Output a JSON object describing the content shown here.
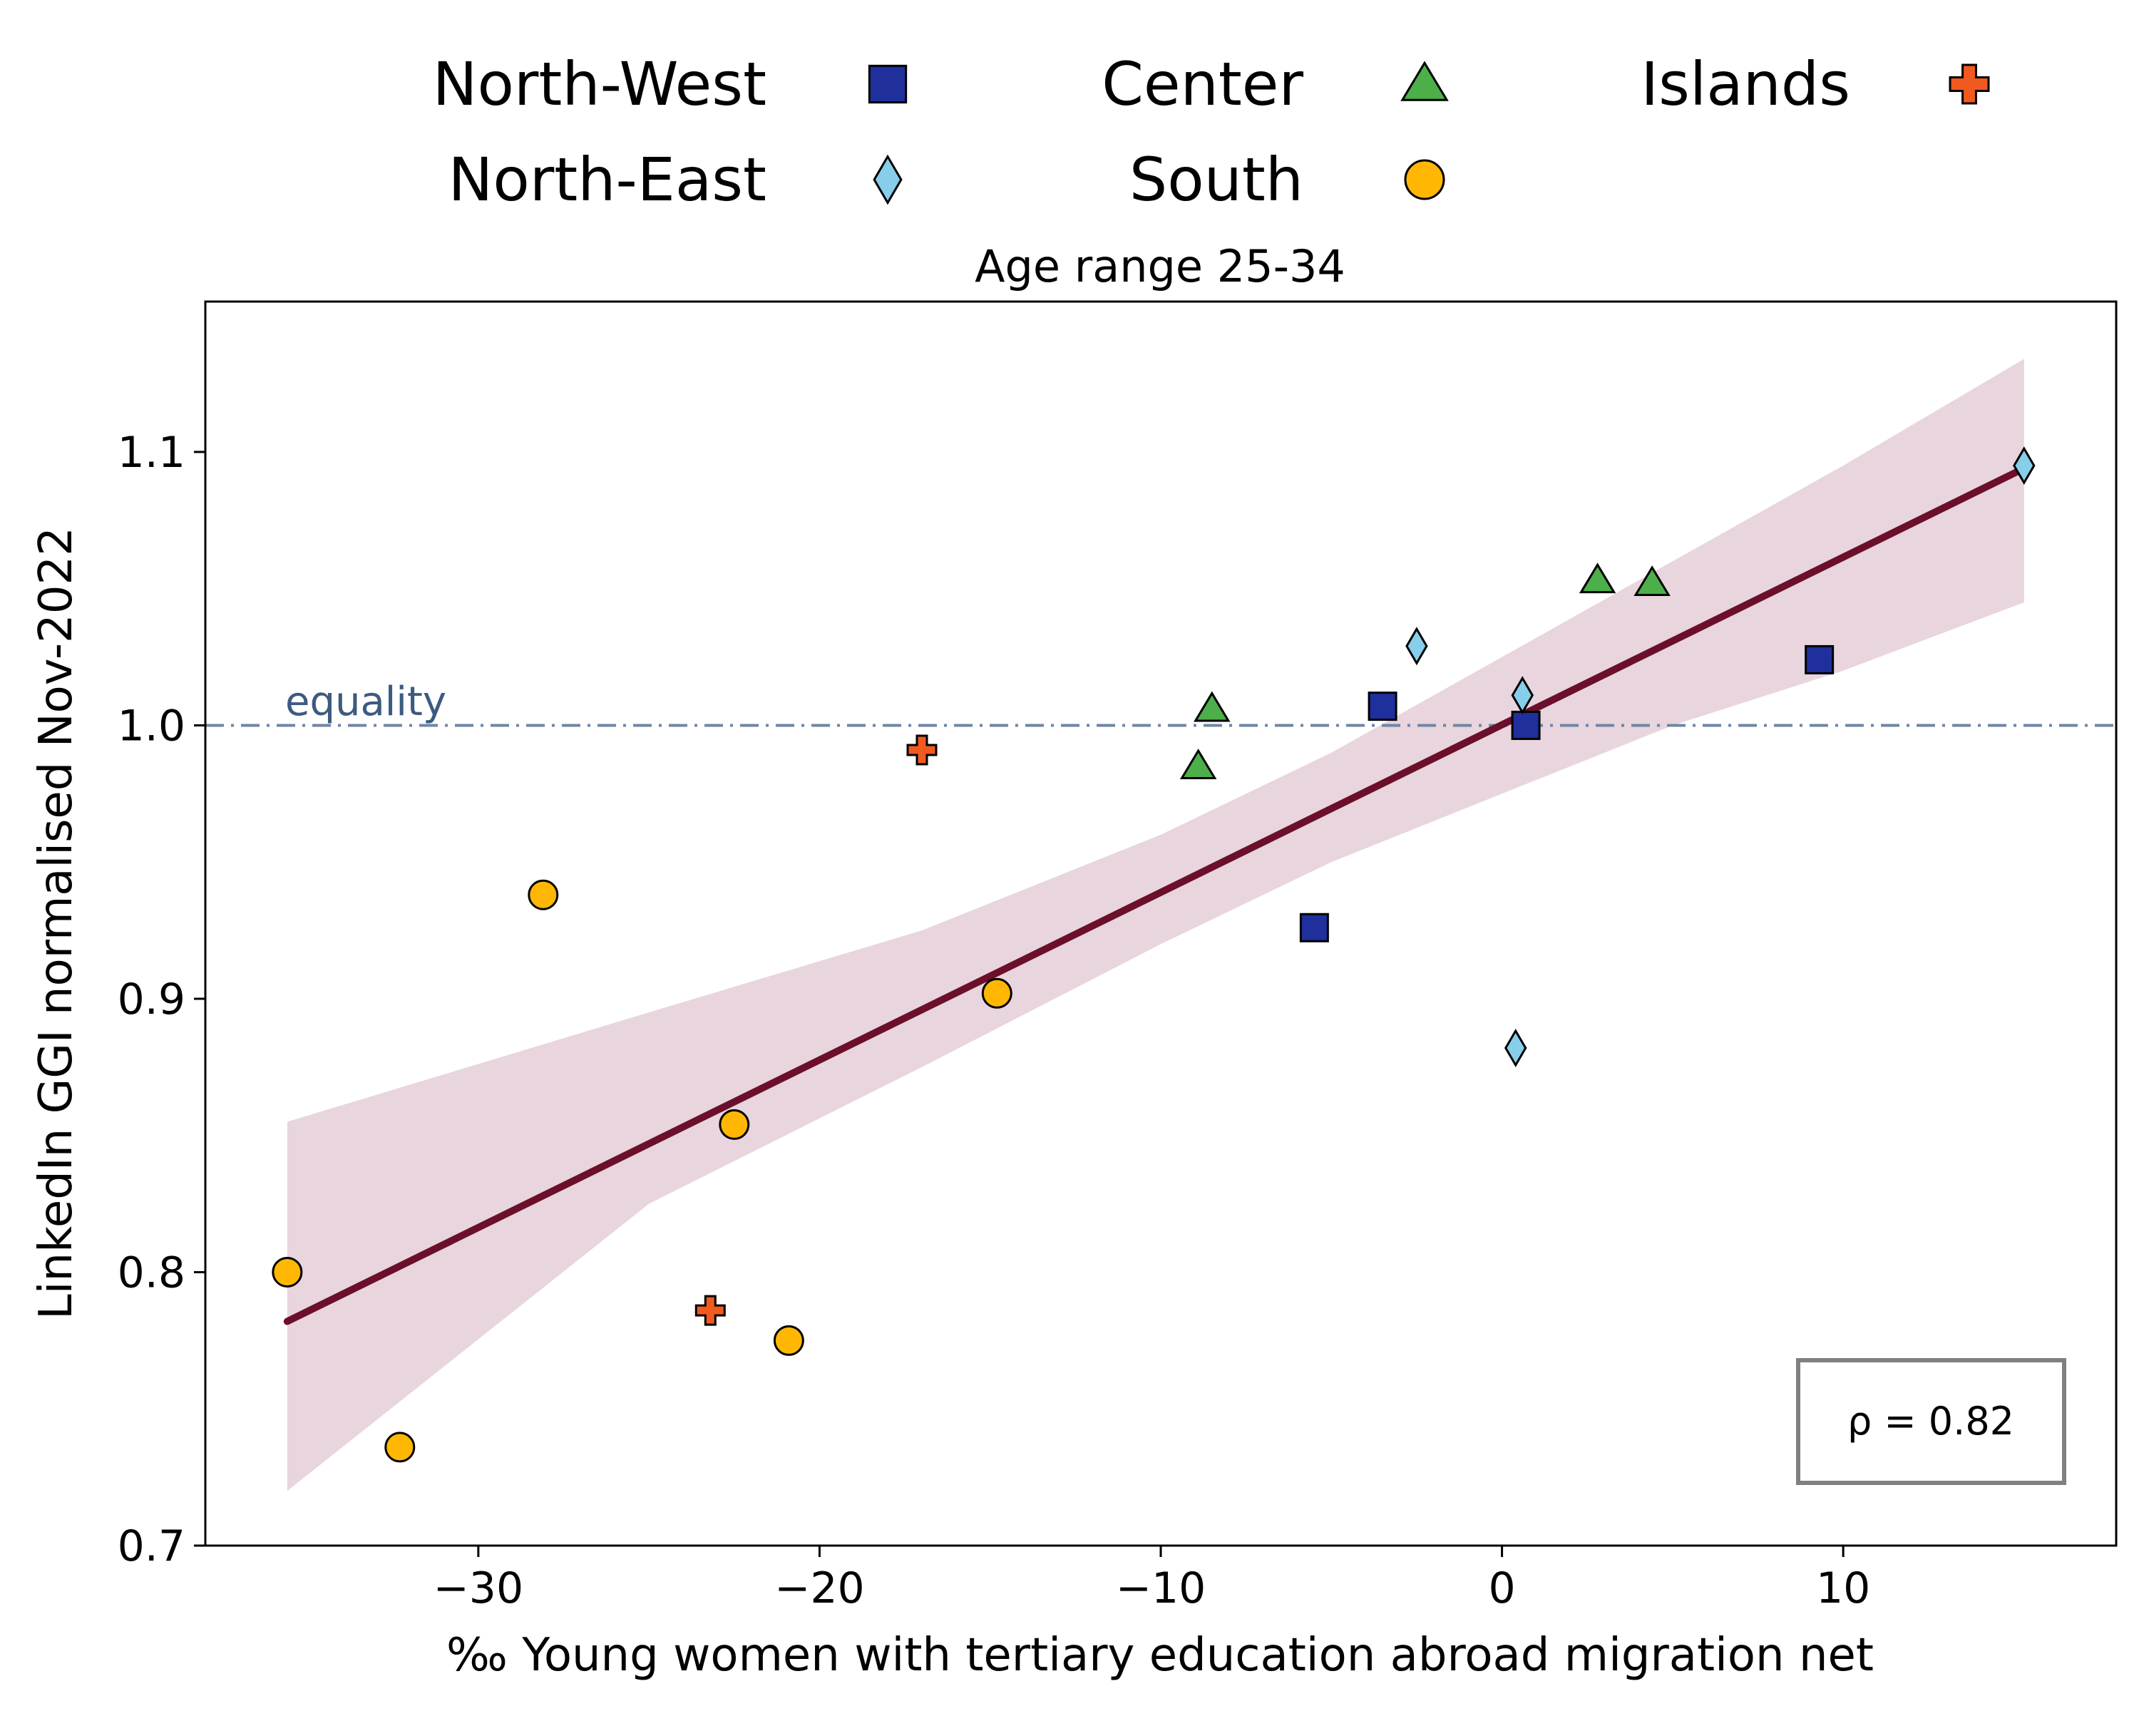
{
  "chart_data": {
    "type": "scatter",
    "title": "Age range 25-34",
    "xlabel": "‰ Young women with tertiary education abroad migration net",
    "ylabel": "LinkedIn GGI normalised Nov-2022",
    "xlim": [
      -38,
      18
    ],
    "ylim": [
      0.7,
      1.155
    ],
    "xticks": [
      -30,
      -20,
      -10,
      0,
      10
    ],
    "xtick_labels": [
      "−30",
      "−20",
      "−10",
      "0",
      "10"
    ],
    "yticks": [
      0.7,
      0.8,
      0.9,
      1.0,
      1.1
    ],
    "ytick_labels": [
      "0.7",
      "0.8",
      "0.9",
      "1.0",
      "1.1"
    ],
    "grid": false,
    "legend_position": "top, above plot",
    "series": [
      {
        "name": "North-West",
        "marker": "square",
        "color": "#1f2f9c",
        "points": [
          [
            -5.5,
            0.926
          ],
          [
            -3.5,
            1.007
          ],
          [
            0.7,
            1.0
          ],
          [
            9.3,
            1.024
          ]
        ]
      },
      {
        "name": "North-East",
        "marker": "diamond",
        "color": "#87ceeb",
        "points": [
          [
            -2.5,
            1.029
          ],
          [
            0.6,
            1.011
          ],
          [
            0.4,
            0.882
          ],
          [
            15.3,
            1.095
          ]
        ]
      },
      {
        "name": "Center",
        "marker": "triangle",
        "color": "#4daf4a",
        "points": [
          [
            -8.9,
            0.985
          ],
          [
            -8.5,
            1.006
          ],
          [
            2.8,
            1.053
          ],
          [
            4.4,
            1.052
          ]
        ]
      },
      {
        "name": "South",
        "marker": "circle",
        "color": "#ffb703",
        "points": [
          [
            -35.6,
            0.8
          ],
          [
            -32.3,
            0.736
          ],
          [
            -28.1,
            0.938
          ],
          [
            -22.5,
            0.854
          ],
          [
            -20.9,
            0.775
          ],
          [
            -14.8,
            0.902
          ]
        ]
      },
      {
        "name": "Islands",
        "marker": "plus",
        "color": "#f05a1e",
        "points": [
          [
            -23.2,
            0.786
          ],
          [
            -17.0,
            0.991
          ]
        ]
      }
    ],
    "regression": {
      "color": "#6b0f2a",
      "from": [
        -35.6,
        0.782
      ],
      "to": [
        15.3,
        1.094
      ]
    },
    "confidence_band": {
      "color": "#e8d5dd",
      "x": [
        -35.6,
        -25,
        -17,
        -10,
        -5,
        0,
        5,
        10,
        15.3
      ],
      "upper": [
        0.855,
        0.895,
        0.925,
        0.96,
        0.99,
        1.025,
        1.06,
        1.095,
        1.134
      ],
      "lower": [
        0.72,
        0.825,
        0.875,
        0.92,
        0.95,
        0.975,
        1.0,
        1.02,
        1.045
      ]
    },
    "reference_line": {
      "y": 1.0,
      "label": "equality",
      "color": "#6f86a6"
    },
    "annotation": {
      "text": "ρ = 0.82",
      "position": "bottom-right"
    }
  }
}
